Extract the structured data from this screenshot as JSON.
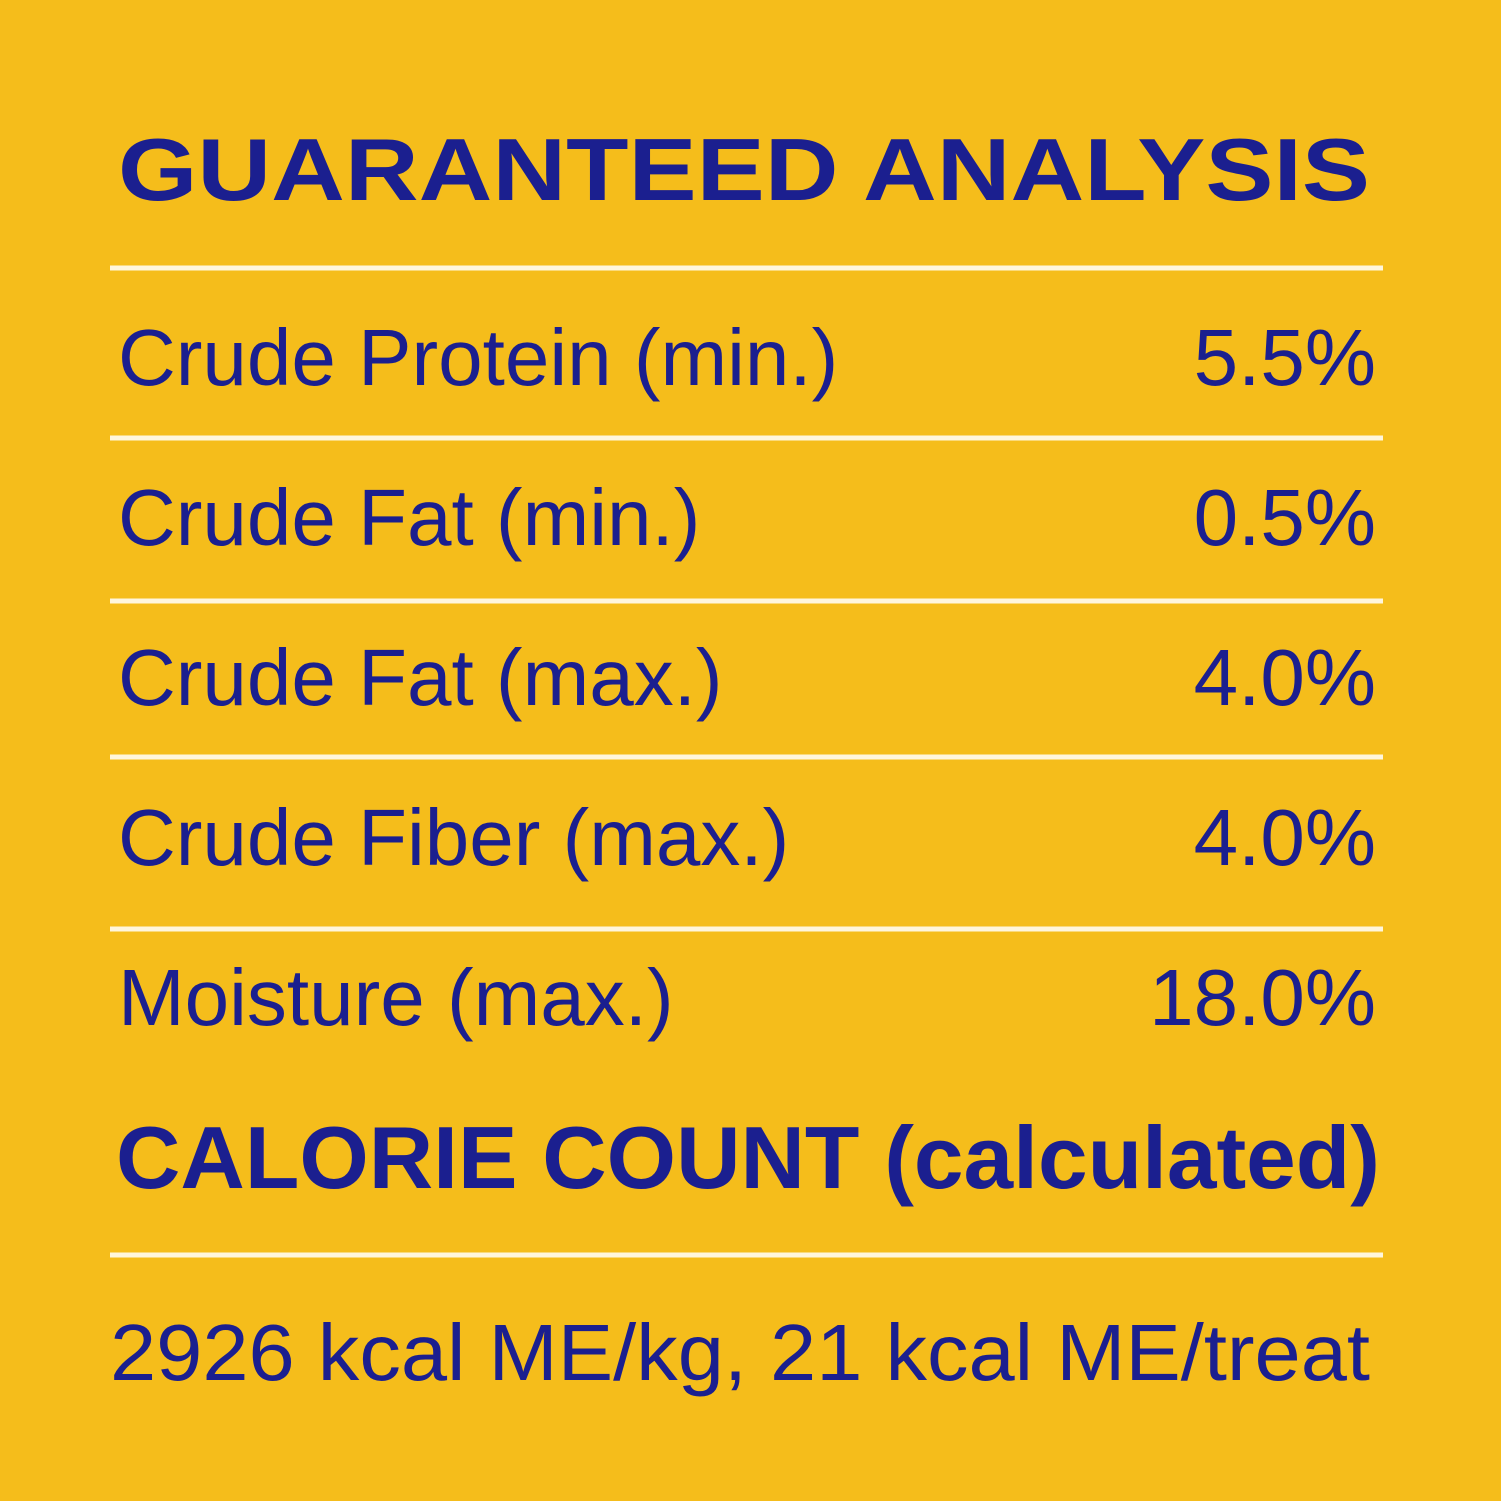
{
  "header": {
    "title": "GUARANTEED ANALYSIS"
  },
  "table": {
    "rows": [
      [
        "Crude Protein (min.)",
        "5.5%"
      ],
      [
        "Crude Fat (min.)",
        "0.5%"
      ],
      [
        "Crude Fat (max.)",
        "4.0%"
      ],
      [
        "Crude Fiber (max.)",
        "4.0%"
      ],
      [
        "Moisture (max.)",
        "18.0%"
      ]
    ]
  },
  "calorie": {
    "title": "CALORIE COUNT (calculated)",
    "text": "2926 kcal ME/kg, 21 kcal ME/treat"
  }
}
